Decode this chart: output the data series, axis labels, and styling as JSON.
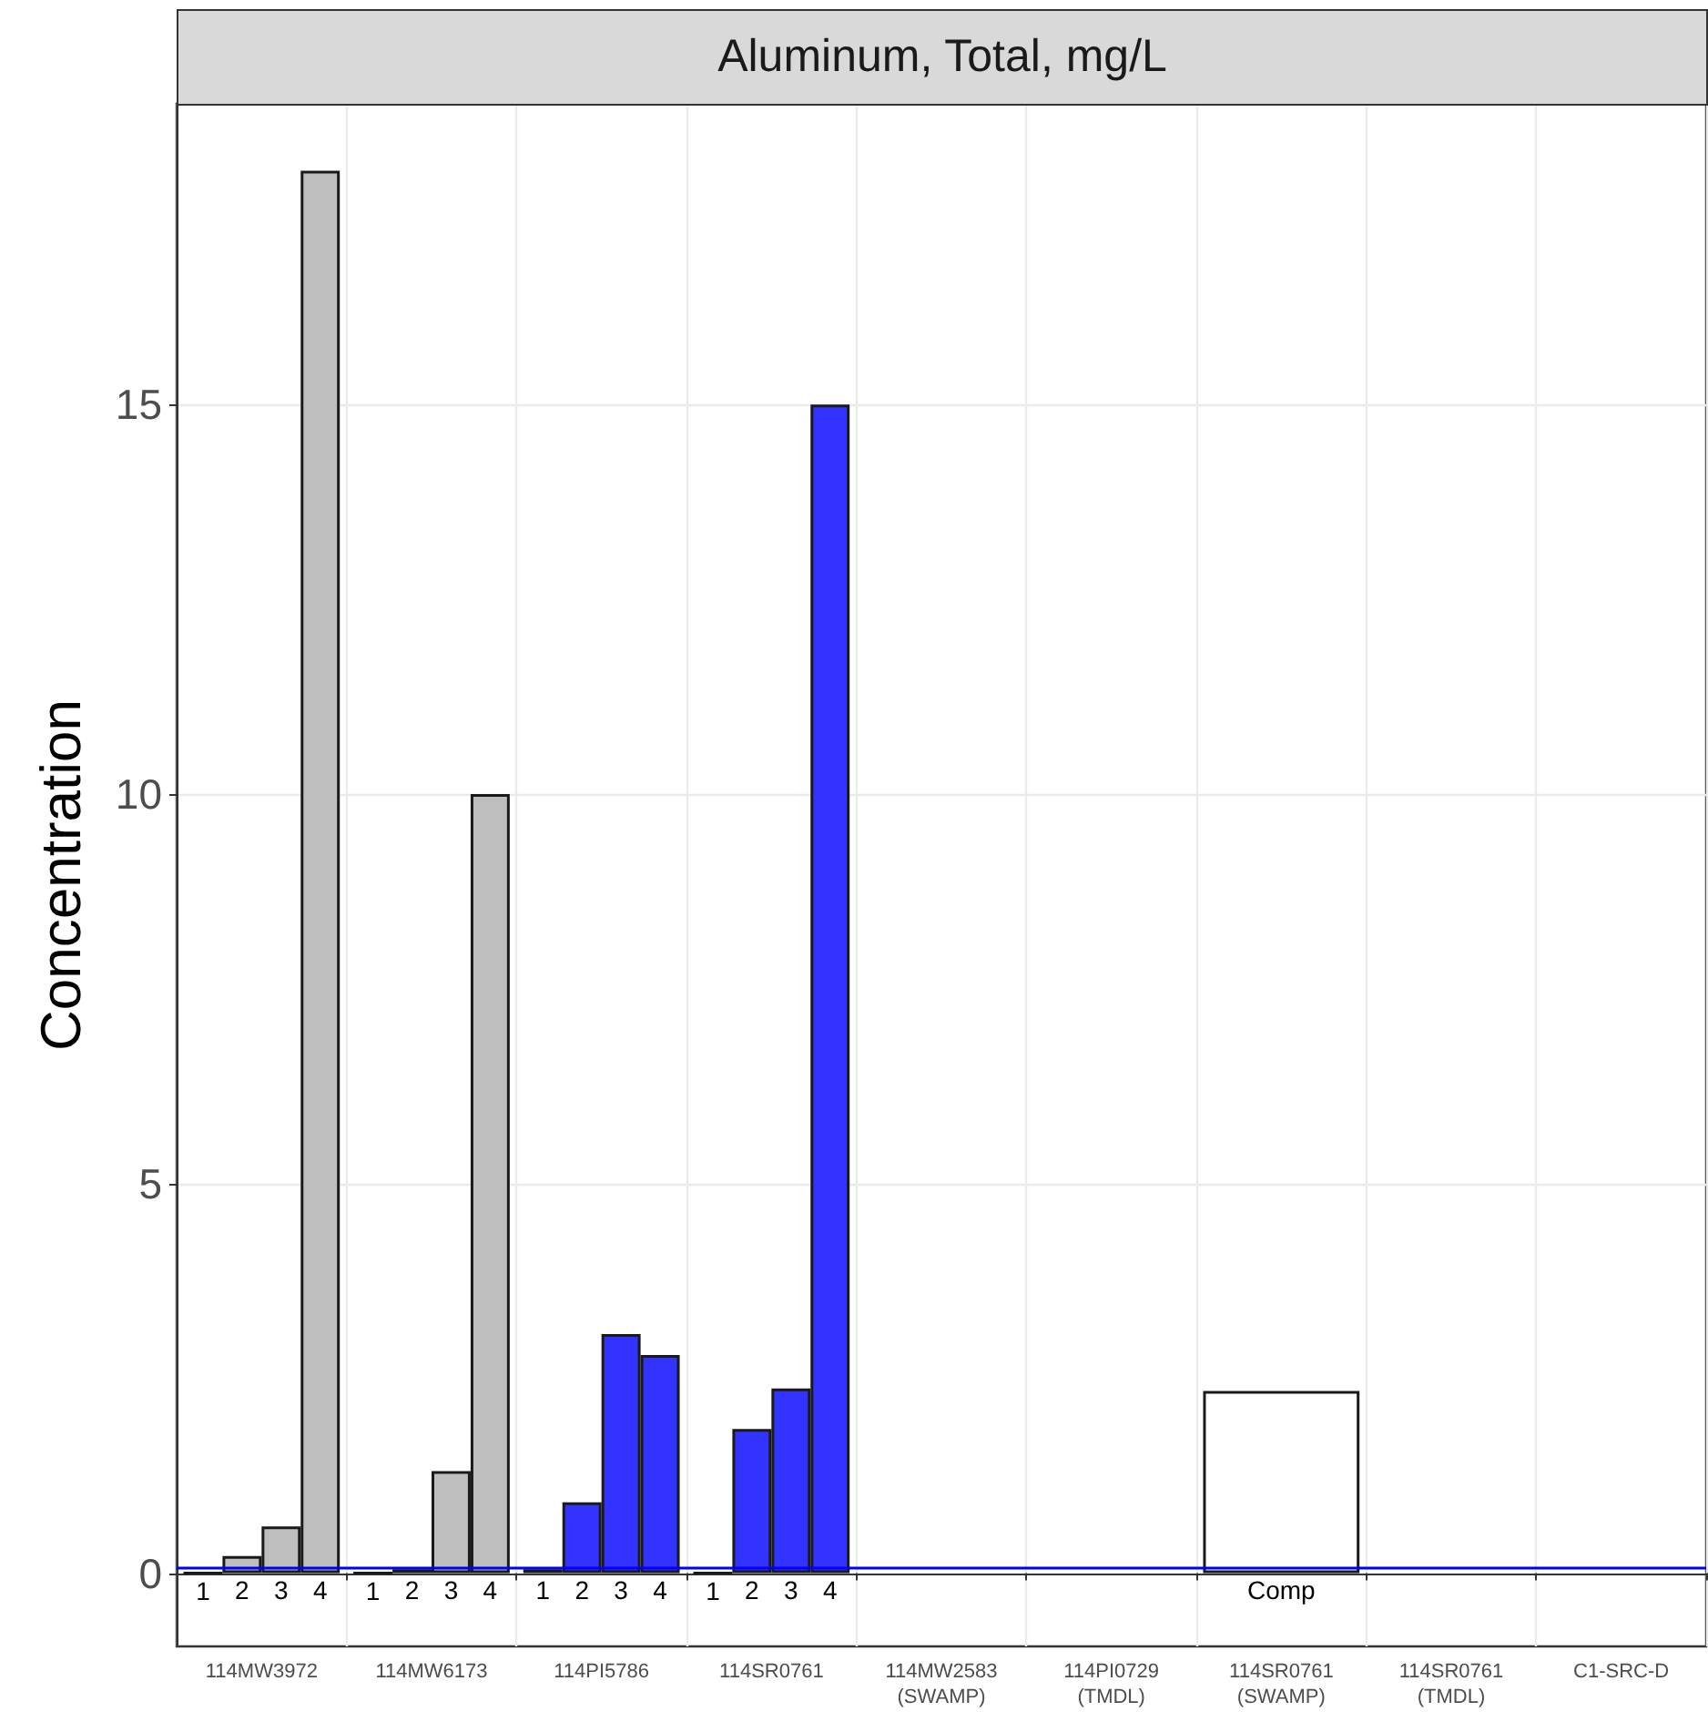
{
  "chart_data": {
    "type": "bar",
    "title": "Aluminum, Total, mg/L",
    "ylabel": "Concentration",
    "categories": [
      "114MW3972",
      "114MW6173",
      "114PI5786",
      "114SR0761",
      "114MW2583\n(SWAMP)",
      "114PI0729\n(TMDL)",
      "114SR0761\n(SWAMP)",
      "114SR0761\n(TMDL)",
      "C1-SRC-D"
    ],
    "series": [
      {
        "name": "1",
        "colors": [
          "#1a1a1a",
          "#1a1a1a",
          "#1a1a1a",
          "#1a1a1a",
          null,
          null,
          null,
          null,
          null
        ],
        "values": [
          0,
          0,
          0.05,
          0,
          null,
          null,
          null,
          null,
          null
        ]
      },
      {
        "name": "2",
        "colors": [
          "#bebebe",
          "#1a1a1a",
          "#3333ff",
          "#3333ff",
          null,
          null,
          null,
          null,
          null
        ],
        "values": [
          0.22,
          0.05,
          0.91,
          1.85,
          null,
          null,
          null,
          null,
          null
        ]
      },
      {
        "name": "3",
        "colors": [
          "#bebebe",
          "#bebebe",
          "#3333ff",
          "#3333ff",
          null,
          null,
          null,
          null,
          null
        ],
        "values": [
          0.6,
          1.31,
          3.07,
          2.37,
          null,
          null,
          null,
          null,
          null
        ]
      },
      {
        "name": "4",
        "colors": [
          "#bebebe",
          "#bebebe",
          "#3333ff",
          "#3333ff",
          null,
          null,
          null,
          null,
          null
        ],
        "values": [
          18,
          10,
          2.8,
          15,
          null,
          null,
          null,
          null,
          null
        ]
      },
      {
        "name": "Comp",
        "colors": [
          null,
          null,
          null,
          null,
          null,
          null,
          "#ffffff",
          null,
          null
        ],
        "values": [
          null,
          null,
          null,
          null,
          null,
          null,
          2.34,
          null,
          null
        ]
      }
    ],
    "ylim": [
      -0.94,
      18.86
    ],
    "yticks": [
      0,
      5,
      10,
      15
    ],
    "grid": true,
    "legend": false,
    "ref_lines": [
      {
        "axis": "y",
        "value": 0.07,
        "color": "#0000ff"
      }
    ]
  }
}
